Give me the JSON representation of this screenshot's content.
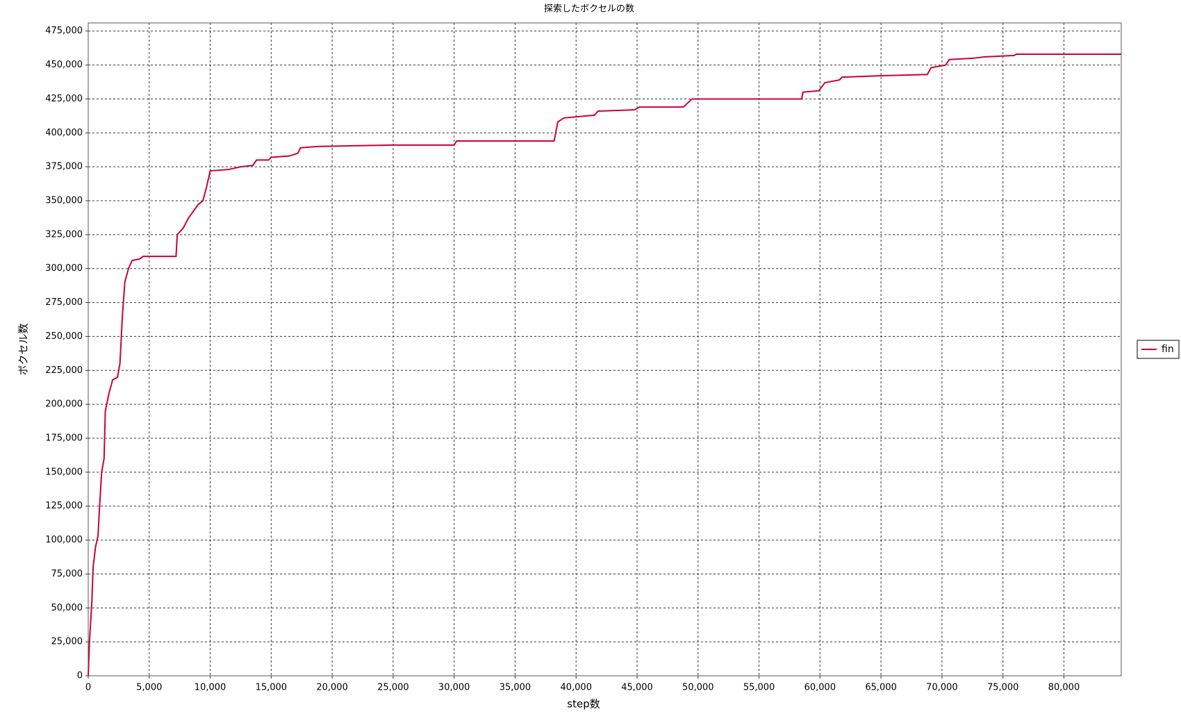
{
  "chart_data": {
    "type": "line",
    "title": "探索したボクセルの数",
    "x_label": "step数",
    "y_label": "ボクセル数",
    "xlim": [
      0,
      84700
    ],
    "ylim": [
      0,
      481000
    ],
    "xticks": [
      0,
      {
        "value": 5000,
        "label": "5,000"
      },
      {
        "value": 10000,
        "label": "10,000"
      },
      {
        "value": 15000,
        "label": "15,000"
      },
      {
        "value": 20000,
        "label": "20,000"
      },
      {
        "value": 25000,
        "label": "25,000"
      },
      {
        "value": 30000,
        "label": "30,000"
      },
      {
        "value": 35000,
        "label": "35,000"
      },
      {
        "value": 40000,
        "label": "40,000"
      },
      {
        "value": 45000,
        "label": "45,000"
      },
      {
        "value": 50000,
        "label": "50,000"
      },
      {
        "value": 55000,
        "label": "55,000"
      },
      {
        "value": 60000,
        "label": "60,000"
      },
      {
        "value": 65000,
        "label": "65,000"
      },
      {
        "value": 70000,
        "label": "70,000"
      },
      {
        "value": 75000,
        "label": "75,000"
      },
      {
        "value": 80000,
        "label": "80,000"
      }
    ],
    "yticks": [
      0,
      {
        "value": 25000,
        "label": "25,000"
      },
      {
        "value": 50000,
        "label": "50,000"
      },
      {
        "value": 75000,
        "label": "75,000"
      },
      {
        "value": 100000,
        "label": "100,000"
      },
      {
        "value": 125000,
        "label": "125,000"
      },
      {
        "value": 150000,
        "label": "150,000"
      },
      {
        "value": 175000,
        "label": "175,000"
      },
      {
        "value": 200000,
        "label": "200,000"
      },
      {
        "value": 225000,
        "label": "225,000"
      },
      {
        "value": 250000,
        "label": "250,000"
      },
      {
        "value": 275000,
        "label": "275,000"
      },
      {
        "value": 300000,
        "label": "300,000"
      },
      {
        "value": 325000,
        "label": "325,000"
      },
      {
        "value": 350000,
        "label": "350,000"
      },
      {
        "value": 375000,
        "label": "375,000"
      },
      {
        "value": 400000,
        "label": "400,000"
      },
      {
        "value": 425000,
        "label": "425,000"
      },
      {
        "value": 450000,
        "label": "450,000"
      },
      {
        "value": 475000,
        "label": "475,000"
      }
    ],
    "grid": true,
    "legend": "right",
    "x": [
      0,
      100,
      300,
      400,
      600,
      800,
      900,
      1100,
      1300,
      1400,
      1700,
      2000,
      2400,
      2600,
      2800,
      3000,
      3300,
      3600,
      4200,
      4500,
      7200,
      7300,
      7800,
      8200,
      8600,
      9000,
      9400,
      9700,
      10000,
      11500,
      12500,
      13500,
      13800,
      14800,
      15000,
      16500,
      17200,
      17400,
      18800,
      25000,
      30000,
      30200,
      38200,
      38500,
      39000,
      41500,
      41800,
      44800,
      45200,
      48800,
      49500,
      58500,
      58600,
      59900,
      60400,
      61600,
      61800,
      64700,
      68800,
      69100,
      70300,
      70600,
      72600,
      73500,
      75900,
      76100,
      84700
    ],
    "series": [
      {
        "name": "fin",
        "color": "#cc0033",
        "values": [
          0,
          25000,
          55000,
          80000,
          95000,
          103000,
          120000,
          150000,
          160000,
          195000,
          208000,
          218000,
          220000,
          230000,
          265000,
          290000,
          300000,
          306000,
          307000,
          309000,
          309000,
          325000,
          330000,
          337000,
          342000,
          347000,
          350000,
          360000,
          372000,
          373000,
          375000,
          376000,
          380000,
          380000,
          382000,
          383000,
          385000,
          389000,
          390000,
          391000,
          391000,
          394000,
          394000,
          408000,
          411000,
          413000,
          416000,
          417000,
          419000,
          419000,
          425000,
          425000,
          430000,
          431000,
          437000,
          439000,
          441000,
          442000,
          443000,
          448000,
          450000,
          454000,
          455000,
          456000,
          457000,
          458000,
          458000
        ]
      }
    ]
  }
}
